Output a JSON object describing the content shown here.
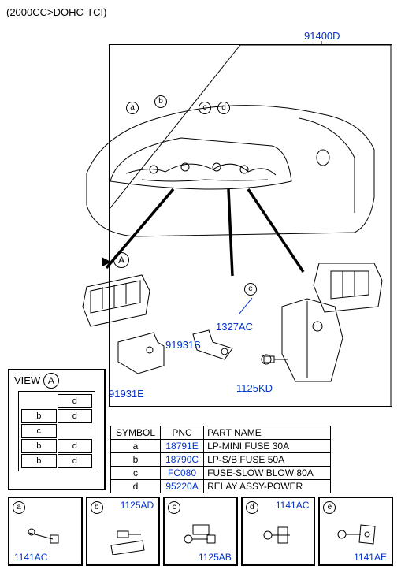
{
  "colors": {
    "link": "#0033cc",
    "line": "#000000",
    "bg": "#ffffff"
  },
  "header": "(2000CC>DOHC-TCI)",
  "main_ref": "91400D",
  "callouts": {
    "a": "a",
    "b": "b",
    "c": "c",
    "d": "d",
    "e": "e",
    "A": "A"
  },
  "labels": {
    "l_1327AC": "1327AC",
    "l_91931S": "91931S",
    "l_1125KD": "1125KD",
    "l_91931E": "91931E"
  },
  "view": {
    "title": "VIEW",
    "letter": "A",
    "slots": [
      [
        "",
        "d"
      ],
      [
        "b",
        "d"
      ],
      [
        "c",
        ""
      ],
      [
        "b",
        "d"
      ],
      [
        "b",
        "d"
      ]
    ]
  },
  "table": {
    "headers": [
      "SYMBOL",
      "PNC",
      "PART NAME"
    ],
    "rows": [
      [
        "a",
        "18791E",
        "LP-MINI FUSE 30A"
      ],
      [
        "b",
        "18790C",
        "LP-S/B FUSE 50A"
      ],
      [
        "c",
        "FC080",
        "FUSE-SLOW BLOW 80A"
      ],
      [
        "d",
        "95220A",
        "RELAY ASSY-POWER"
      ]
    ]
  },
  "bottom": [
    {
      "letter": "a",
      "ref": "1141AC",
      "ref_pos": "bl"
    },
    {
      "letter": "b",
      "ref": "1125AD",
      "ref_pos": "tr"
    },
    {
      "letter": "c",
      "ref": "1125AB",
      "ref_pos": "br"
    },
    {
      "letter": "d",
      "ref": "1141AC",
      "ref_pos": "tr"
    },
    {
      "letter": "e",
      "ref": "1141AE",
      "ref_pos": "br"
    }
  ]
}
